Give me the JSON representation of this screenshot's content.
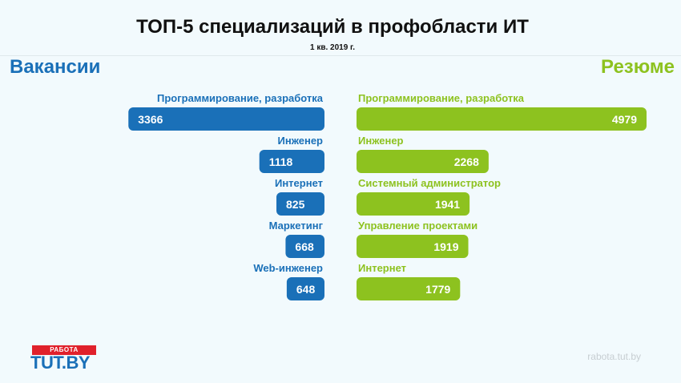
{
  "header": {
    "title": "ТОП-5 специализаций в профобласти ИТ",
    "subtitle": "1 кв. 2019 г."
  },
  "chart_data": [
    {
      "type": "bar",
      "title": "Вакансии",
      "categories": [
        "Программирование, разработка",
        "Инженер",
        "Интернет",
        "Маркетинг",
        "Web-инженер"
      ],
      "values": [
        3366,
        1118,
        825,
        668,
        648
      ],
      "color": "#1a70b8",
      "orientation": "horizontal",
      "direction": "right-to-left"
    },
    {
      "type": "bar",
      "title": "Резюме",
      "categories": [
        "Программирование, разработка",
        "Инженер",
        "Системный администратор",
        "Управление проектами",
        "Интернет"
      ],
      "values": [
        4979,
        2268,
        1941,
        1919,
        1779
      ],
      "color": "#8dc21f",
      "orientation": "horizontal",
      "direction": "left-to-right"
    }
  ],
  "branding": {
    "logo_top": "РАБОТА",
    "logo_main_left": "TUT",
    "logo_main_right": ".BY",
    "logo_red": "#e0212b",
    "logo_blue": "#1a70b8",
    "site": "rabota.tut.by"
  }
}
